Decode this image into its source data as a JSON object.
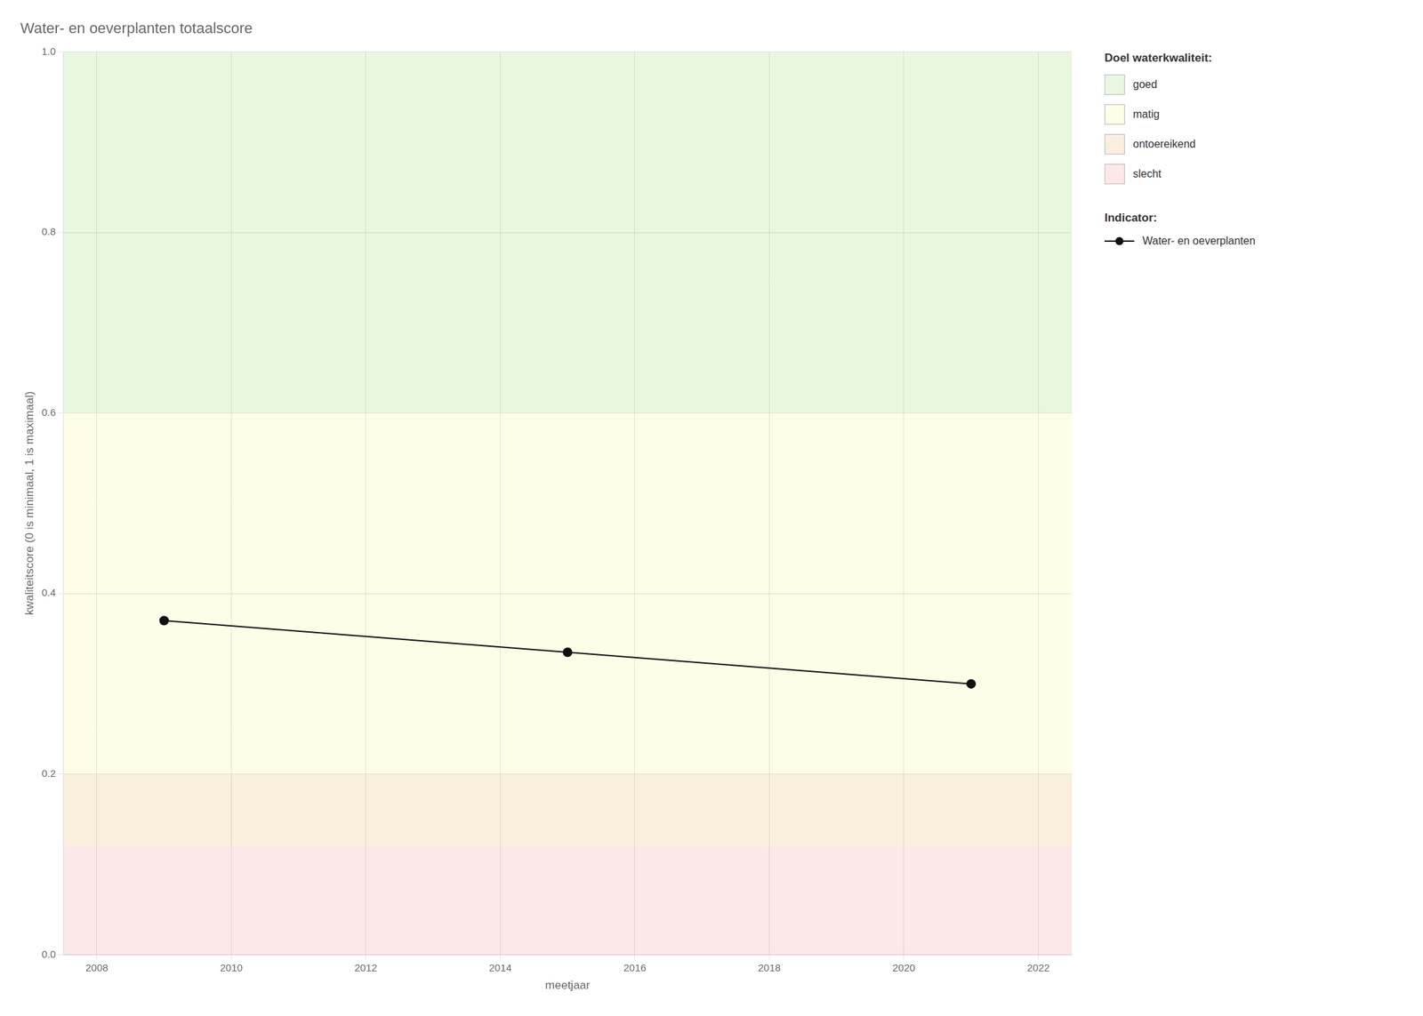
{
  "chart_data": {
    "type": "line",
    "title": "Water- en oeverplanten totaalscore",
    "x_label": "meetjaar",
    "y_label": "kwaliteitscore (0 is minimaal, 1 is maximaal)",
    "x": [
      2009,
      2015,
      2021
    ],
    "series": [
      {
        "name": "Water- en oeverplanten",
        "color": "#111111",
        "marker": "circle",
        "values": [
          0.37,
          0.335,
          0.3
        ]
      }
    ],
    "xlim": [
      2007.5,
      2022.5
    ],
    "ylim": [
      0.0,
      1.0
    ],
    "xticks": [
      2008,
      2010,
      2012,
      2014,
      2016,
      2018,
      2020,
      2022
    ],
    "yticks": [
      {
        "value": 0,
        "label": "0.0"
      },
      0.2,
      0.4,
      0.6,
      0.8,
      {
        "value": 1,
        "label": "1.0"
      }
    ],
    "grid": true,
    "legend": "right",
    "zones_title": "Doel waterkwaliteit:",
    "zones": [
      {
        "label": "goed",
        "ymin": 0.6,
        "ymax": 1.0,
        "color": "#e8f8e0"
      },
      {
        "label": "matig",
        "ymin": 0.2,
        "ymax": 0.6,
        "color": "#fdfde8"
      },
      {
        "label": "ontoereikend",
        "ymin": 0.12,
        "ymax": 0.2,
        "color": "#faeedd"
      },
      {
        "label": "slecht",
        "ymin": 0.0,
        "ymax": 0.12,
        "color": "#fce8e8"
      }
    ],
    "series_title": "Indicator:"
  }
}
